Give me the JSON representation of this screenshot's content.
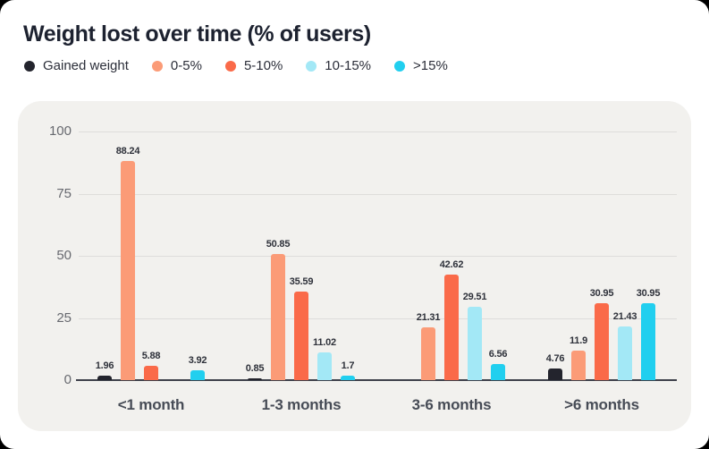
{
  "title": "Weight lost over time (% of users)",
  "colors": {
    "card_background": "#ffffff",
    "panel_background": "#f2f1ee",
    "gridline": "#dedddb",
    "axis_line": "#3e414b",
    "tick_label": "#67696f",
    "value_label": "#2e313a",
    "category_label": "#474c56",
    "title_text": "#1d2230"
  },
  "chart_data": {
    "type": "bar",
    "title": "Weight lost over time (% of users)",
    "xlabel": "",
    "ylabel": "",
    "categories": [
      "<1 month",
      "1-3 months",
      "3-6 months",
      ">6 months"
    ],
    "series": [
      {
        "name": "Gained weight",
        "color": "#23242d",
        "values": [
          1.96,
          0.85,
          null,
          4.76
        ]
      },
      {
        "name": "0-5%",
        "color": "#fb9b77",
        "values": [
          88.24,
          50.85,
          21.31,
          11.9
        ]
      },
      {
        "name": "5-10%",
        "color": "#fa6a49",
        "values": [
          5.88,
          35.59,
          42.62,
          30.95
        ]
      },
      {
        "name": "10-15%",
        "color": "#a3e8f6",
        "values": [
          null,
          11.02,
          29.51,
          21.43
        ]
      },
      {
        "name": ">15%",
        "color": "#21cfef",
        "values": [
          3.92,
          1.7,
          6.56,
          30.95
        ]
      }
    ],
    "yticks": [
      100,
      75,
      50,
      25,
      0
    ],
    "ylim": [
      0,
      100
    ],
    "grid": true,
    "legend_position": "top"
  }
}
